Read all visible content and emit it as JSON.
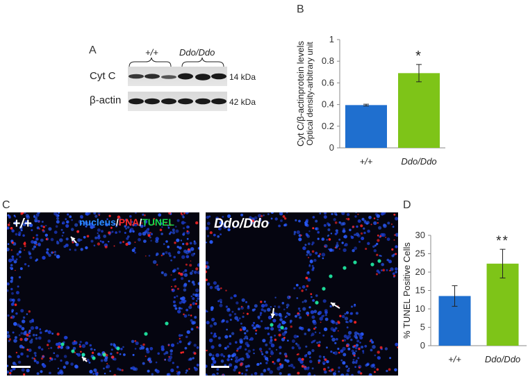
{
  "panels": {
    "A": {
      "letter": "A",
      "groups": [
        "+/+",
        "Ddo/Ddo"
      ],
      "blots": [
        {
          "label": "Cyt C",
          "size": "14 kDa"
        },
        {
          "label": "β-actin",
          "size": "42 kDa"
        }
      ]
    },
    "B": {
      "letter": "B"
    },
    "C": {
      "letter": "C",
      "left_label": "+/+",
      "right_label": "Ddo/Ddo",
      "stain_nucleus": "nucleus",
      "stain_sep1": "/",
      "stain_pna": "PNA",
      "stain_sep2": "/",
      "stain_tunel": "TUNEL"
    },
    "D": {
      "letter": "D"
    }
  },
  "colors": {
    "wildtype": "#1f6fcf",
    "mutant": "#7ec418",
    "nucleus": "#2a8cff",
    "pna": "#ff2a2a",
    "tunel": "#19d44a"
  },
  "chart_data": [
    {
      "type": "bar",
      "categories": [
        "+/+",
        "Ddo/Ddo"
      ],
      "values": [
        0.395,
        0.69
      ],
      "errors": [
        0.008,
        0.08
      ],
      "significance": [
        "",
        "*"
      ],
      "ylabel": "Cyt C/β-actinprotein levels",
      "ylabel2": "Optical density-arbitrary unit",
      "ylim": [
        0,
        1
      ],
      "yticks": [
        "0",
        "0.2",
        "0.4",
        "0.6",
        "0.8",
        "1"
      ],
      "grid": false
    },
    {
      "type": "bar",
      "categories": [
        "+/+",
        "Ddo/Ddo"
      ],
      "values": [
        13.5,
        22.3
      ],
      "errors": [
        2.8,
        3.9
      ],
      "significance": [
        "",
        "**"
      ],
      "ylabel": "% TUNEL Positive Cells",
      "ylim": [
        0,
        30
      ],
      "yticks": [
        "0",
        "5",
        "10",
        "15",
        "20",
        "25",
        "30"
      ],
      "grid": false
    }
  ]
}
